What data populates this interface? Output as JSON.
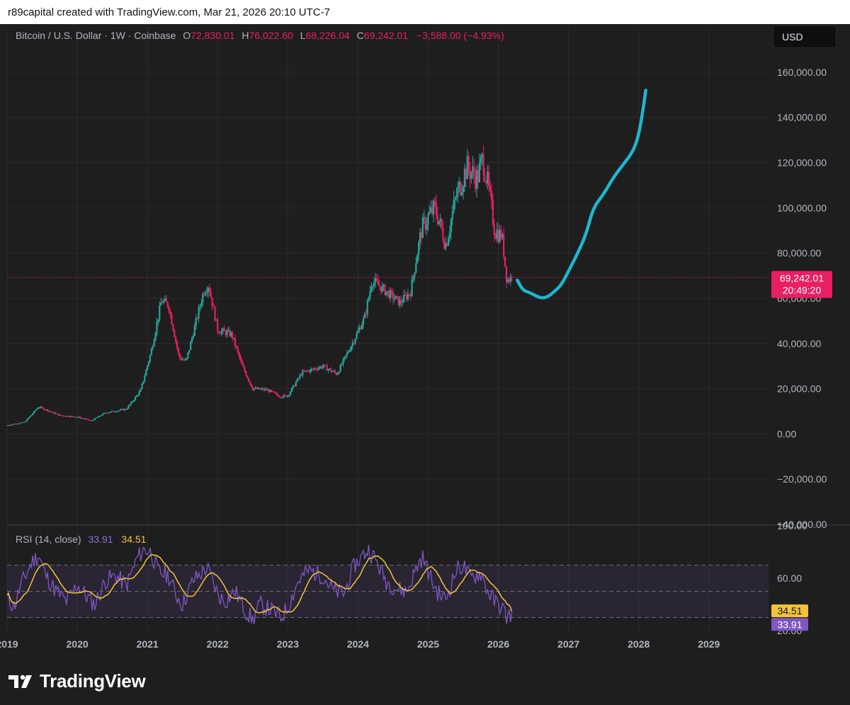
{
  "header": {
    "text": "r89capital created with TradingView.com, Mar 21, 2026 20:10 UTC-7"
  },
  "legend": {
    "symbol": "Bitcoin / U.S. Dollar · 1W · Coinbase",
    "o_label": "O",
    "o_value": "72,830.01",
    "h_label": "H",
    "h_value": "76,022.60",
    "l_label": "L",
    "l_value": "68,226.04",
    "c_label": "C",
    "c_value": "69,242.01",
    "change": "−3,588.00 (−4.93%)"
  },
  "currency_button": "USD",
  "price_badge": {
    "price": "69,242.01",
    "countdown": "20:49:20"
  },
  "rsi": {
    "label": "RSI (14, close)",
    "value": "33.91",
    "ma_value": "34.51"
  },
  "footer": {
    "brand": "TradingView"
  },
  "colors": {
    "up": "#26a69a",
    "down": "#e91e63",
    "projection": "#1fb6cf",
    "rsi_line": "#7e57c2",
    "rsi_ma": "#f3c43a",
    "last_price": "#e91e63"
  },
  "chart_data": [
    {
      "type": "candlestick",
      "title": "Bitcoin / U.S. Dollar · 1W · Coinbase",
      "y_axis_ticks": [
        "160,000.00",
        "140,000.00",
        "120,000.00",
        "100,000.00",
        "80,000.00",
        "60,000.00",
        "40,000.00",
        "20,000.00",
        "0.00",
        "−20,000.00",
        "−40,000.00"
      ],
      "y_tick_values": [
        160000,
        140000,
        120000,
        100000,
        80000,
        60000,
        40000,
        20000,
        0,
        -20000,
        -40000
      ],
      "ylim": [
        -40000,
        170000
      ],
      "x_axis_ticks": [
        "2019",
        "2020",
        "2021",
        "2022",
        "2023",
        "2024",
        "2025",
        "2026",
        "2027",
        "2028",
        "2029"
      ],
      "x_tick_values": [
        2019,
        2020,
        2021,
        2022,
        2023,
        2024,
        2025,
        2026,
        2027,
        2028,
        2029
      ],
      "xlim": [
        2019.0,
        2029.85
      ],
      "last_price": 69242.01,
      "price_anchors": [
        [
          2019.0,
          3800
        ],
        [
          2019.25,
          5200
        ],
        [
          2019.45,
          12000
        ],
        [
          2019.75,
          8200
        ],
        [
          2020.0,
          7500
        ],
        [
          2020.2,
          5800
        ],
        [
          2020.4,
          9300
        ],
        [
          2020.7,
          11000
        ],
        [
          2020.9,
          19000
        ],
        [
          2021.05,
          36000
        ],
        [
          2021.2,
          59000
        ],
        [
          2021.3,
          57000
        ],
        [
          2021.45,
          34000
        ],
        [
          2021.55,
          32000
        ],
        [
          2021.8,
          63000
        ],
        [
          2021.87,
          66000
        ],
        [
          2022.0,
          46000
        ],
        [
          2022.2,
          44000
        ],
        [
          2022.35,
          30000
        ],
        [
          2022.5,
          20000
        ],
        [
          2022.7,
          19500
        ],
        [
          2022.9,
          16500
        ],
        [
          2023.0,
          17000
        ],
        [
          2023.2,
          27000
        ],
        [
          2023.5,
          30000
        ],
        [
          2023.7,
          26500
        ],
        [
          2023.95,
          42000
        ],
        [
          2024.1,
          52000
        ],
        [
          2024.2,
          68000
        ],
        [
          2024.4,
          63000
        ],
        [
          2024.6,
          58000
        ],
        [
          2024.75,
          63000
        ],
        [
          2024.9,
          90000
        ],
        [
          2025.0,
          96000
        ],
        [
          2025.1,
          100000
        ],
        [
          2025.25,
          84000
        ],
        [
          2025.4,
          105000
        ],
        [
          2025.55,
          118000
        ],
        [
          2025.7,
          113000
        ],
        [
          2025.78,
          122000
        ],
        [
          2025.85,
          110000
        ],
        [
          2025.95,
          90000
        ],
        [
          2026.05,
          88000
        ],
        [
          2026.12,
          68000
        ],
        [
          2026.2,
          69242
        ]
      ],
      "projection": [
        [
          2026.27,
          68000
        ],
        [
          2026.35,
          63500
        ],
        [
          2026.45,
          62500
        ],
        [
          2026.6,
          60000
        ],
        [
          2026.7,
          60500
        ],
        [
          2026.8,
          63000
        ],
        [
          2026.9,
          66000
        ],
        [
          2027.0,
          72000
        ],
        [
          2027.1,
          78000
        ],
        [
          2027.25,
          88000
        ],
        [
          2027.35,
          100000
        ],
        [
          2027.5,
          106000
        ],
        [
          2027.65,
          114000
        ],
        [
          2027.8,
          120000
        ],
        [
          2027.92,
          125000
        ],
        [
          2028.0,
          132000
        ],
        [
          2028.07,
          145000
        ],
        [
          2028.1,
          152000
        ]
      ]
    },
    {
      "type": "line",
      "title": "RSI (14, close)",
      "y_axis_ticks": [
        "100.00",
        "60.00",
        "20.00"
      ],
      "y_tick_values": [
        100,
        60,
        20
      ],
      "ylim": [
        20,
        100
      ],
      "band_levels": [
        70,
        30,
        50
      ],
      "last_rsi": 33.91,
      "last_ma": 34.51,
      "rsi_anchors": [
        [
          2019.0,
          45
        ],
        [
          2019.1,
          38
        ],
        [
          2019.2,
          55
        ],
        [
          2019.35,
          72
        ],
        [
          2019.45,
          78
        ],
        [
          2019.55,
          62
        ],
        [
          2019.7,
          50
        ],
        [
          2019.85,
          42
        ],
        [
          2020.0,
          55
        ],
        [
          2020.15,
          45
        ],
        [
          2020.25,
          40
        ],
        [
          2020.4,
          58
        ],
        [
          2020.55,
          62
        ],
        [
          2020.7,
          54
        ],
        [
          2020.85,
          75
        ],
        [
          2020.95,
          82
        ],
        [
          2021.05,
          80
        ],
        [
          2021.15,
          65
        ],
        [
          2021.3,
          62
        ],
        [
          2021.4,
          48
        ],
        [
          2021.5,
          40
        ],
        [
          2021.65,
          58
        ],
        [
          2021.85,
          68
        ],
        [
          2022.0,
          48
        ],
        [
          2022.1,
          42
        ],
        [
          2022.25,
          50
        ],
        [
          2022.4,
          35
        ],
        [
          2022.5,
          28
        ],
        [
          2022.6,
          40
        ],
        [
          2022.75,
          36
        ],
        [
          2022.9,
          30
        ],
        [
          2023.0,
          38
        ],
        [
          2023.15,
          58
        ],
        [
          2023.3,
          66
        ],
        [
          2023.5,
          62
        ],
        [
          2023.65,
          50
        ],
        [
          2023.8,
          48
        ],
        [
          2023.95,
          70
        ],
        [
          2024.05,
          76
        ],
        [
          2024.15,
          82
        ],
        [
          2024.25,
          74
        ],
        [
          2024.4,
          58
        ],
        [
          2024.55,
          52
        ],
        [
          2024.7,
          50
        ],
        [
          2024.85,
          70
        ],
        [
          2024.92,
          76
        ],
        [
          2025.05,
          58
        ],
        [
          2025.15,
          48
        ],
        [
          2025.25,
          44
        ],
        [
          2025.4,
          66
        ],
        [
          2025.5,
          70
        ],
        [
          2025.6,
          60
        ],
        [
          2025.75,
          64
        ],
        [
          2025.85,
          50
        ],
        [
          2025.95,
          42
        ],
        [
          2026.05,
          38
        ],
        [
          2026.12,
          30
        ],
        [
          2026.2,
          33.91
        ]
      ]
    }
  ]
}
